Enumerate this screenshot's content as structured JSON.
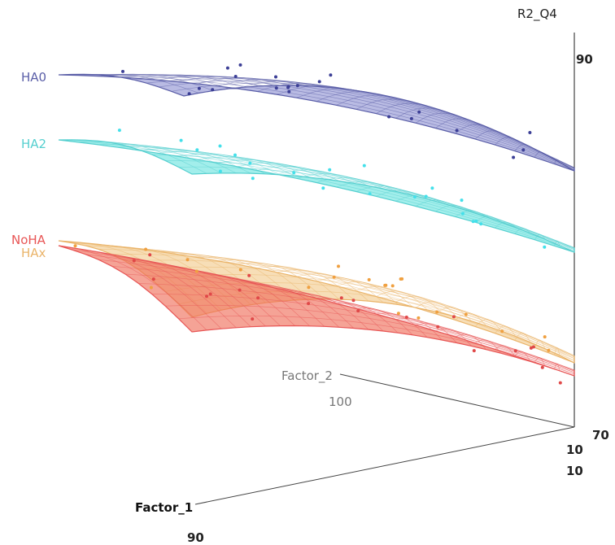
{
  "chart_data": {
    "type": "surface3d",
    "axes": {
      "z": {
        "label": "R2_Q4",
        "ticks": [
          "90",
          "70"
        ]
      },
      "x": {
        "label": "Factor_1",
        "ticks": [
          "10",
          "90"
        ]
      },
      "y": {
        "label": "Factor_2",
        "ticks": [
          "10",
          "100"
        ]
      }
    },
    "series": [
      {
        "name": "HA0",
        "color": "#5b5fa8",
        "fill": "#8e92d2",
        "points_color": "#3c3f96"
      },
      {
        "name": "HA2",
        "color": "#55cfcf",
        "fill": "#69e3df",
        "points_color": "#44e0ea"
      },
      {
        "name": "NoHA",
        "color": "#e85656",
        "fill": "#ef6a55",
        "points_color": "#e04848"
      },
      {
        "name": "HAx",
        "color": "#eab46a",
        "fill": "#f2c98b",
        "points_color": "#f0a040"
      }
    ],
    "grid": false,
    "legend": "left, next to each surface"
  }
}
